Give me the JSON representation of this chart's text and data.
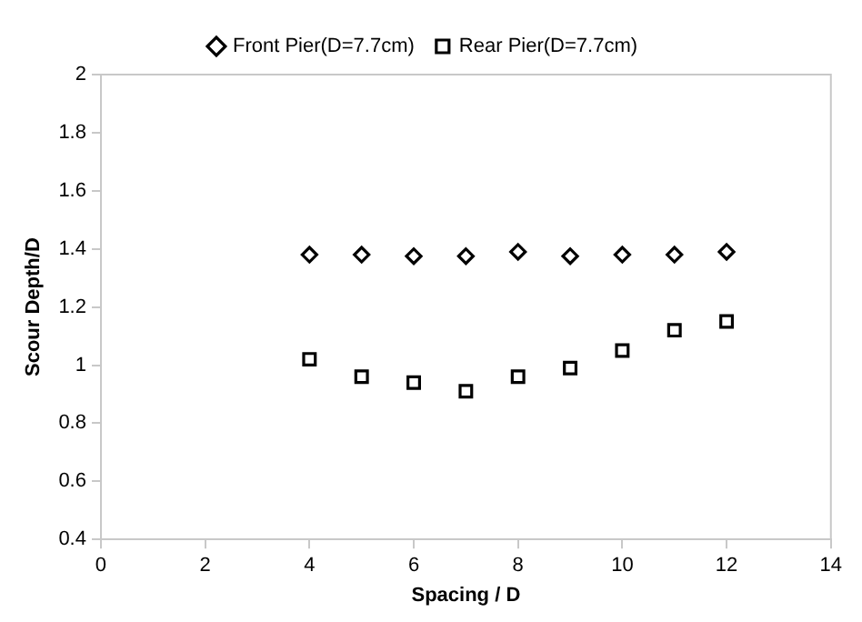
{
  "chart_data": {
    "type": "scatter",
    "xlabel": "Spacing / D",
    "ylabel": "Scour Depth/D",
    "x": [
      4,
      5,
      6,
      7,
      8,
      9,
      10,
      11,
      12
    ],
    "series": [
      {
        "name": "Front Pier(D=7.7cm)",
        "color": "#000000",
        "marker": "diamond",
        "values": [
          1.38,
          1.38,
          1.375,
          1.375,
          1.39,
          1.375,
          1.38,
          1.38,
          1.39
        ]
      },
      {
        "name": "Rear Pier(D=7.7cm)",
        "color": "#000000",
        "marker": "square",
        "values": [
          1.02,
          0.96,
          0.94,
          0.91,
          0.96,
          0.99,
          1.05,
          1.12,
          1.15
        ]
      }
    ],
    "xlim": [
      0,
      14
    ],
    "xticks": [
      0,
      2,
      4,
      6,
      8,
      10,
      12,
      14
    ],
    "ylim": [
      0.4,
      2
    ],
    "yticks": [
      0.4,
      0.6,
      0.8,
      1,
      1.2,
      1.4,
      1.6,
      1.8,
      2
    ],
    "grid": false,
    "legend": "top"
  }
}
